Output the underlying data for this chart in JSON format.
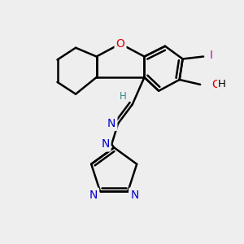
{
  "background_color": "#eeeeee",
  "bond_color": "#000000",
  "bond_width": 1.8,
  "figsize": [
    3.0,
    3.0
  ],
  "dpi": 100,
  "xlim": [
    0,
    300
  ],
  "ylim": [
    0,
    300
  ]
}
